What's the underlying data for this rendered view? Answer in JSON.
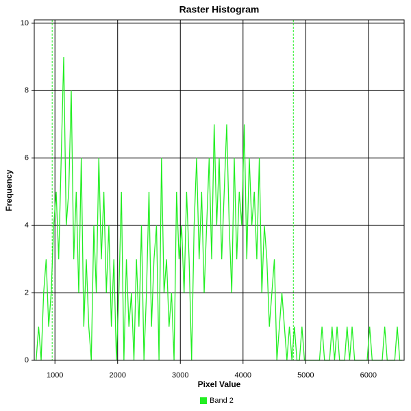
{
  "chart_data": {
    "type": "line",
    "title": "Raster Histogram",
    "x_label": "Pixel Value",
    "y_label": "Frequency",
    "x": [
      700,
      740,
      780,
      820,
      860,
      900,
      940,
      980,
      1020,
      1060,
      1100,
      1140,
      1180,
      1220,
      1260,
      1300,
      1340,
      1380,
      1420,
      1460,
      1500,
      1540,
      1580,
      1620,
      1660,
      1700,
      1740,
      1780,
      1820,
      1860,
      1900,
      1940,
      1980,
      2020,
      2060,
      2100,
      2140,
      2180,
      2220,
      2260,
      2300,
      2340,
      2380,
      2420,
      2460,
      2500,
      2540,
      2580,
      2620,
      2660,
      2700,
      2740,
      2780,
      2820,
      2860,
      2900,
      2940,
      2980,
      3020,
      3060,
      3100,
      3140,
      3180,
      3220,
      3260,
      3300,
      3340,
      3380,
      3420,
      3460,
      3500,
      3540,
      3580,
      3620,
      3660,
      3700,
      3740,
      3780,
      3820,
      3860,
      3900,
      3940,
      3980,
      4020,
      4060,
      4100,
      4140,
      4180,
      4220,
      4260,
      4300,
      4340,
      4380,
      4420,
      4460,
      4500,
      4540,
      4580,
      4620,
      4660,
      4700,
      4740,
      4780,
      4820,
      4860,
      4900,
      4940,
      4980,
      5020,
      5060,
      5100,
      5140,
      5180,
      5220,
      5260,
      5300,
      5340,
      5380,
      5420,
      5460,
      5500,
      5540,
      5580,
      5620,
      5660,
      5700,
      5740,
      5780,
      5820,
      5860,
      5900,
      5940,
      5980,
      6020,
      6060,
      6100,
      6140,
      6180,
      6220,
      6260,
      6300,
      6340,
      6380,
      6420,
      6460,
      6500,
      6540
    ],
    "series": [
      {
        "name": "Band 2",
        "color": "#22ee22",
        "values": [
          0,
          1,
          0,
          2,
          3,
          1,
          2,
          4,
          5,
          3,
          6,
          9,
          4,
          5,
          8,
          3,
          5,
          2,
          6,
          1,
          3,
          1,
          0,
          4,
          2,
          6,
          3,
          5,
          2,
          4,
          1,
          3,
          0,
          2,
          5,
          0,
          3,
          1,
          2,
          0,
          3,
          1,
          4,
          0,
          2,
          5,
          1,
          3,
          4,
          0,
          6,
          2,
          3,
          1,
          2,
          0,
          5,
          3,
          4,
          2,
          5,
          3,
          0,
          4,
          6,
          3,
          5,
          2,
          4,
          6,
          3,
          7,
          4,
          6,
          3,
          5,
          7,
          4,
          2,
          6,
          3,
          5,
          4,
          7,
          3,
          6,
          4,
          5,
          3,
          6,
          2,
          4,
          3,
          1,
          2,
          3,
          0,
          1,
          2,
          1,
          0,
          1,
          0,
          1,
          0,
          0,
          1,
          0,
          0,
          0,
          0,
          0,
          0,
          0,
          1,
          0,
          0,
          0,
          1,
          0,
          1,
          0,
          0,
          0,
          1,
          0,
          1,
          0,
          0,
          0,
          0,
          0,
          0,
          1,
          0,
          0,
          0,
          0,
          0,
          1,
          0,
          0,
          0,
          0,
          1,
          0,
          0
        ]
      }
    ],
    "markers": [
      956,
      4803
    ],
    "xlim": [
      670,
      6570
    ],
    "ylim": [
      0,
      10.1
    ],
    "xticks": [
      1000,
      2000,
      3000,
      4000,
      5000,
      6000
    ],
    "yticks": [
      0,
      2,
      4,
      6,
      8,
      10
    ],
    "grid": true
  }
}
